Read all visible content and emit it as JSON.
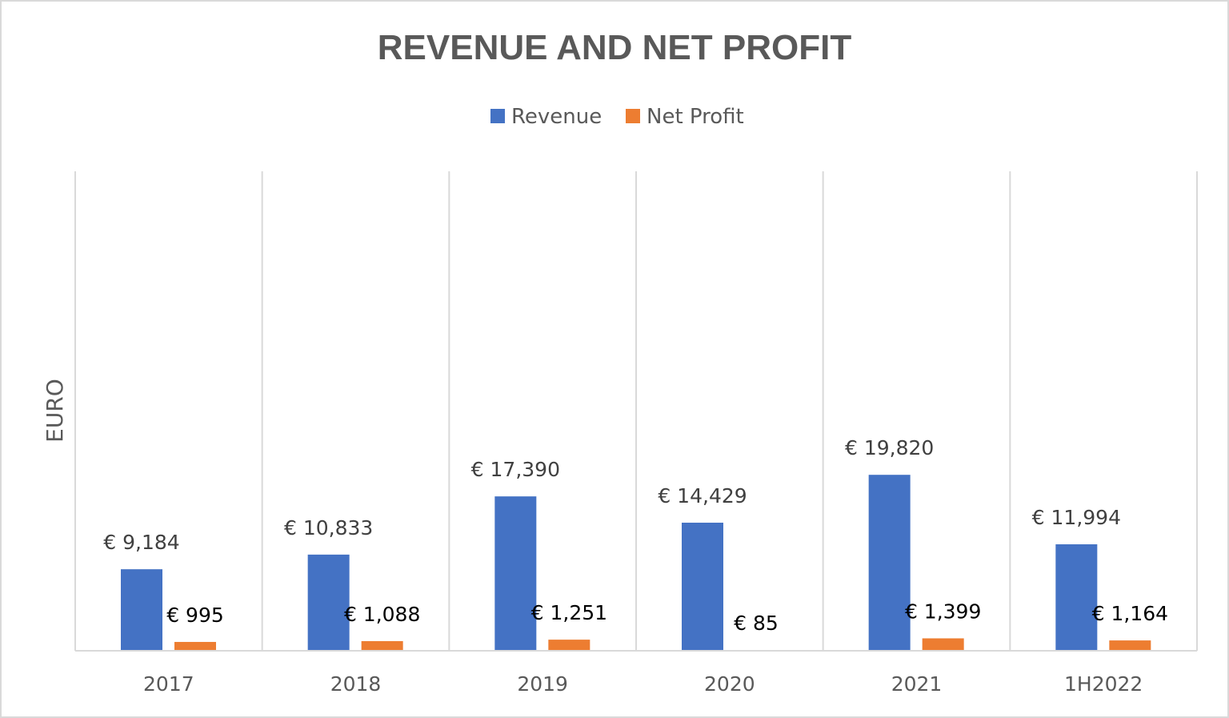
{
  "chart_data": {
    "type": "bar",
    "title": "REVENUE AND NET PROFIT",
    "xlabel": "",
    "ylabel": "EURO",
    "categories": [
      "2017",
      "2018",
      "2019",
      "2020",
      "2021",
      "1H2022"
    ],
    "series": [
      {
        "name": "Revenue",
        "color": "#4472c4",
        "values": [
          9184,
          10833,
          17390,
          14429,
          19820,
          11994
        ],
        "labels": [
          "€ 9,184",
          "€ 10,833",
          "€ 17,390",
          "€ 14,429",
          "€ 19,820",
          "€ 11,994"
        ]
      },
      {
        "name": "Net Profit",
        "color": "#ed7d31",
        "values": [
          995,
          1088,
          1251,
          85,
          1399,
          1164
        ],
        "labels": [
          "€ 995",
          "€ 1,088",
          "€ 1,251",
          "€ 85",
          "€ 1,399",
          "€ 1,164"
        ]
      }
    ],
    "ylim": [
      0,
      25000
    ],
    "grid": "vertical category separators",
    "legend": "top-center"
  }
}
